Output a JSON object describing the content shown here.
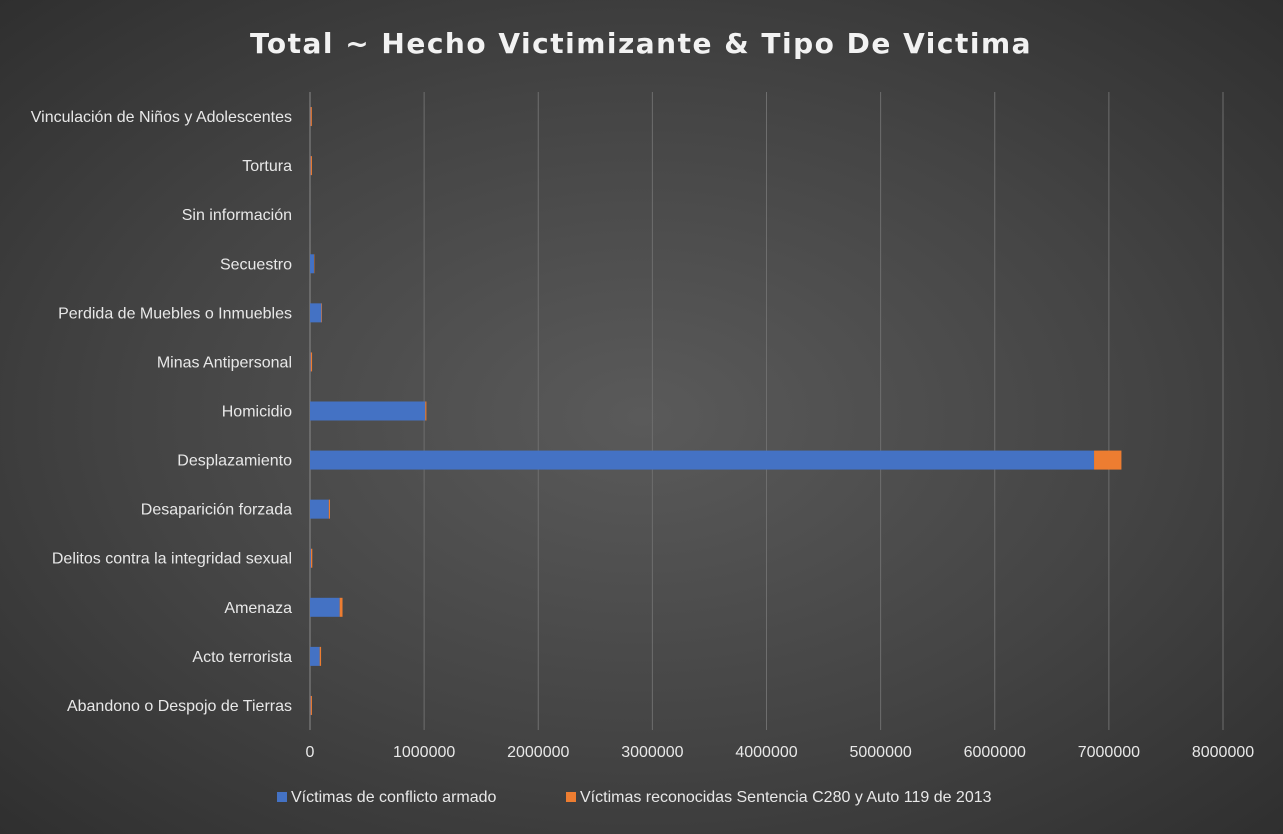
{
  "chart_data": {
    "type": "bar",
    "orientation": "horizontal",
    "stacked": true,
    "title": "Total ~ Hecho Victimizante & Tipo De Victima",
    "xlabel": "",
    "ylabel": "",
    "xlim": [
      0,
      8000000
    ],
    "x_ticks": [
      0,
      1000000,
      2000000,
      3000000,
      4000000,
      5000000,
      6000000,
      7000000,
      8000000
    ],
    "grid": "vertical",
    "legend_position": "bottom",
    "categories": [
      "Abandono o Despojo de Tierras",
      "Acto terrorista",
      "Amenaza",
      "Delitos contra la integridad sexual",
      "Desaparición forzada",
      "Desplazamiento",
      "Homicidio",
      "Minas Antipersonal",
      "Perdida de Muebles o Inmuebles",
      "Secuestro",
      "Sin información",
      "Tortura",
      "Vinculación de Niños y Adolescentes"
    ],
    "series": [
      {
        "name": "Víctimas de conflicto armado",
        "color": "#4472c4",
        "values": [
          5000,
          85000,
          260000,
          8000,
          165000,
          6870000,
          1010000,
          6000,
          100000,
          35000,
          500,
          5000,
          4000
        ]
      },
      {
        "name": "Víctimas reconocidas Sentencia C280 y Auto 119 de 2013",
        "color": "#ed7d31",
        "values": [
          12000,
          12000,
          25000,
          12000,
          10000,
          240000,
          10000,
          12000,
          5000,
          3000,
          100,
          12000,
          12000
        ]
      }
    ]
  }
}
